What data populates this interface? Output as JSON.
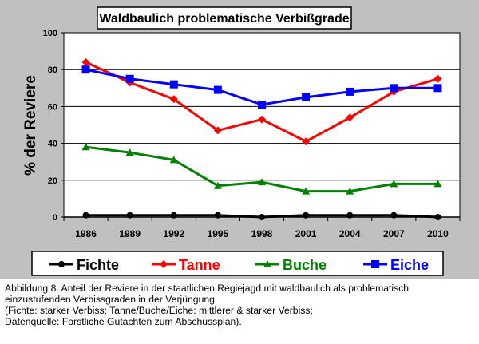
{
  "chart_data": {
    "type": "line",
    "title": "Waldbaulich problematische Verbißgrade",
    "xlabel": "",
    "ylabel": "% der Reviere",
    "ylim": [
      0,
      100
    ],
    "yticks": [
      "0",
      "20",
      "40",
      "60",
      "80",
      "100"
    ],
    "categories": [
      "1986",
      "1989",
      "1992",
      "1995",
      "1998",
      "2001",
      "2004",
      "2007",
      "2010"
    ],
    "grid": true,
    "legend_position": "bottom",
    "series": [
      {
        "name": "Fichte",
        "color": "#000000",
        "marker": "circle",
        "values": [
          1,
          1,
          1,
          1,
          0,
          1,
          1,
          1,
          0
        ]
      },
      {
        "name": "Tanne",
        "color": "#ff0000",
        "marker": "diamond",
        "values": [
          84,
          73,
          64,
          47,
          53,
          41,
          54,
          68,
          75
        ]
      },
      {
        "name": "Buche",
        "color": "#008000",
        "marker": "triangle",
        "values": [
          38,
          35,
          31,
          17,
          19,
          14,
          14,
          18,
          18
        ]
      },
      {
        "name": "Eiche",
        "color": "#0000ff",
        "marker": "square",
        "values": [
          80,
          75,
          72,
          69,
          61,
          65,
          68,
          70,
          70
        ]
      }
    ]
  },
  "caption": {
    "line1": "Abbildung 8. Anteil der Reviere in der staatlichen Regiejagd mit waldbaulich als problematisch",
    "line2": "einzustufenden Verbissgraden in der Verjüngung",
    "line3": "(Fichte: starker Verbiss; Tanne/Buche/Eiche: mittlerer & starker Verbiss;",
    "line4": "Datenquelle: Forstliche Gutachten zum Abschussplan)."
  }
}
